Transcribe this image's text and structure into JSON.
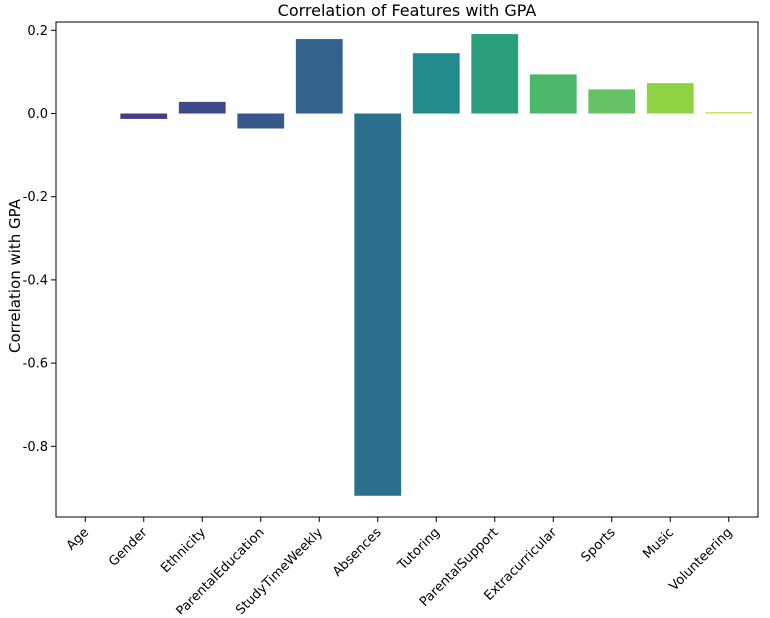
{
  "chart_data": {
    "type": "bar",
    "title": "Correlation of Features with GPA",
    "xlabel": "",
    "ylabel": "Correlation with GPA",
    "categories": [
      "Age",
      "Gender",
      "Ethnicity",
      "ParentalEducation",
      "StudyTimeWeekly",
      "Absences",
      "Tutoring",
      "ParentalSupport",
      "Extracurricular",
      "Sports",
      "Music",
      "Volunteering"
    ],
    "values": [
      0.0,
      -0.013,
      0.028,
      -0.036,
      0.179,
      -0.919,
      0.145,
      0.191,
      0.094,
      0.058,
      0.073,
      0.003
    ],
    "colors": [
      "#482173",
      "#433e85",
      "#3f4a8a",
      "#38588c",
      "#33638d",
      "#2d708e",
      "#238a8d",
      "#2a9d7c",
      "#4cb669",
      "#66c164",
      "#8fd244",
      "#bbdf27"
    ],
    "ylim": [
      -0.97,
      0.22
    ],
    "yticks": [
      0.2,
      0.0,
      -0.2,
      -0.4,
      -0.6,
      -0.8
    ],
    "ytick_labels": [
      "0.2",
      "0.0",
      "-0.2",
      "-0.4",
      "-0.6",
      "-0.8"
    ],
    "grid": false,
    "legend": "none"
  }
}
